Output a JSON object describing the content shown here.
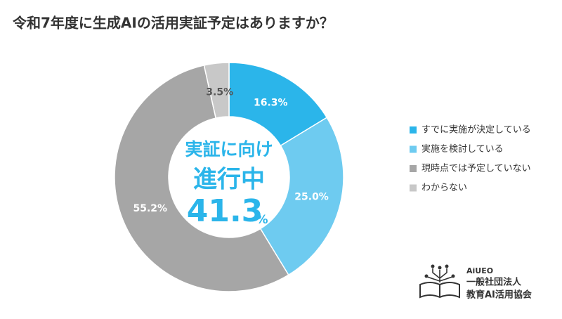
{
  "chart_data": {
    "type": "donut",
    "title": "令和7年度に生成AIの活用実証予定はありますか？",
    "categories": [
      "すでに実施が決定している",
      "実施を検討している",
      "現時点では予定していない",
      "わからない"
    ],
    "values": [
      16.3,
      25.0,
      55.2,
      3.5
    ],
    "value_labels": [
      "16.3%",
      "25.0%",
      "55.2%",
      "3.5%"
    ],
    "colors": [
      "#2bb5ea",
      "#6ecbf0",
      "#a6a6a6",
      "#c8c8c8"
    ],
    "legend": "right",
    "center_lines": [
      "実証に向け",
      "進行中"
    ],
    "center_value": 41.3,
    "center_unit": "%"
  },
  "logo": {
    "brand": "AiUEO",
    "line1": "一般社団法人",
    "line2": "教育AI活用協会"
  }
}
